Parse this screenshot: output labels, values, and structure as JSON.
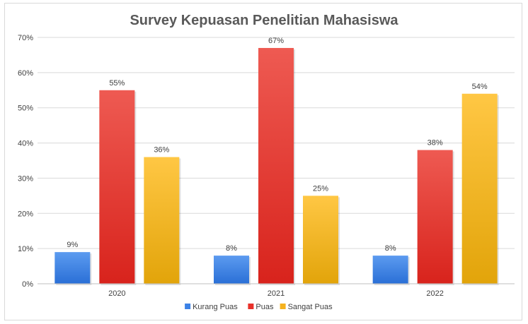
{
  "chart_data": {
    "type": "bar",
    "title": "Survey Kepuasan Penelitian Mahasiswa",
    "categories": [
      "2020",
      "2021",
      "2022"
    ],
    "series": [
      {
        "name": "Kurang Puas",
        "values": [
          9,
          8,
          8
        ],
        "labels": [
          "9%",
          "8%",
          "8%"
        ],
        "color": "#3c82e6"
      },
      {
        "name": "Puas",
        "values": [
          55,
          67,
          38
        ],
        "labels": [
          "55%",
          "67%",
          "38%"
        ],
        "color": "#e8312a"
      },
      {
        "name": "Sangat Puas",
        "values": [
          36,
          25,
          54
        ],
        "labels": [
          "36%",
          "25%",
          "54%"
        ],
        "color": "#f5b21e"
      }
    ],
    "ylim": [
      0,
      70
    ],
    "yticks": [
      "0%",
      "10%",
      "20%",
      "30%",
      "40%",
      "50%",
      "60%",
      "70%"
    ],
    "grid": true,
    "legend_position": "bottom"
  }
}
